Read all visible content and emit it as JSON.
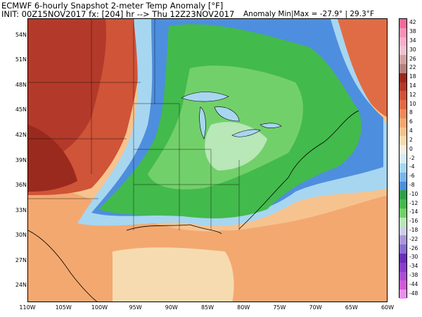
{
  "header": {
    "title_line": "ECMWF 6-hourly Snapshot 2-meter Temp Anomaly [°F]",
    "init_line": "INIT: 00Z15NOV2017 fx: [204] hr --> Thu 12Z23NOV2017",
    "stats_line": "Anomaly Min|Max = -27.9° | 29.3°F"
  },
  "map": {
    "region": "Eastern United States",
    "lon_range": [
      -110,
      -60
    ],
    "lat_range": [
      22,
      56
    ],
    "lat_labels": [
      "54N",
      "51N",
      "48N",
      "45N",
      "42N",
      "39N",
      "36N",
      "33N",
      "30N",
      "27N",
      "24N"
    ],
    "lat_values": [
      54,
      51,
      48,
      45,
      42,
      39,
      36,
      33,
      30,
      27,
      24
    ],
    "lon_labels": [
      "110W",
      "105W",
      "100W",
      "95W",
      "90W",
      "85W",
      "80W",
      "75W",
      "70W",
      "65W",
      "60W"
    ],
    "lon_values": [
      -110,
      -105,
      -100,
      -95,
      -90,
      -85,
      -80,
      -75,
      -70,
      -65,
      -60
    ]
  },
  "colorbar": {
    "labels": [
      "42",
      "38",
      "34",
      "30",
      "26",
      "22",
      "18",
      "14",
      "12",
      "10",
      "8",
      "6",
      "4",
      "2",
      "0",
      "-2",
      "-4",
      "-6",
      "-8",
      "-10",
      "-12",
      "-14",
      "-16",
      "-18",
      "-22",
      "-26",
      "-30",
      "-34",
      "-38",
      "-44",
      "-48"
    ],
    "colors": [
      "#f06a9c",
      "#f592b4",
      "#f8aec8",
      "#efc3cf",
      "#d2a2a2",
      "#b5827e",
      "#9a2a1e",
      "#b33a2a",
      "#cf5438",
      "#e06c45",
      "#ee8a58",
      "#f3a870",
      "#f6c38e",
      "#f7dbb0",
      "#f6eee2",
      "#d6ecf6",
      "#a7d6f0",
      "#7ab6ea",
      "#4e8ede",
      "#2ea04a",
      "#43ba4c",
      "#72d06a",
      "#b8e7b8",
      "#cccfe6",
      "#aa98d8",
      "#8a6ecf",
      "#6a2fb5",
      "#8a3fc6",
      "#aa4fd4",
      "#d05ad6",
      "#e990ea"
    ]
  }
}
